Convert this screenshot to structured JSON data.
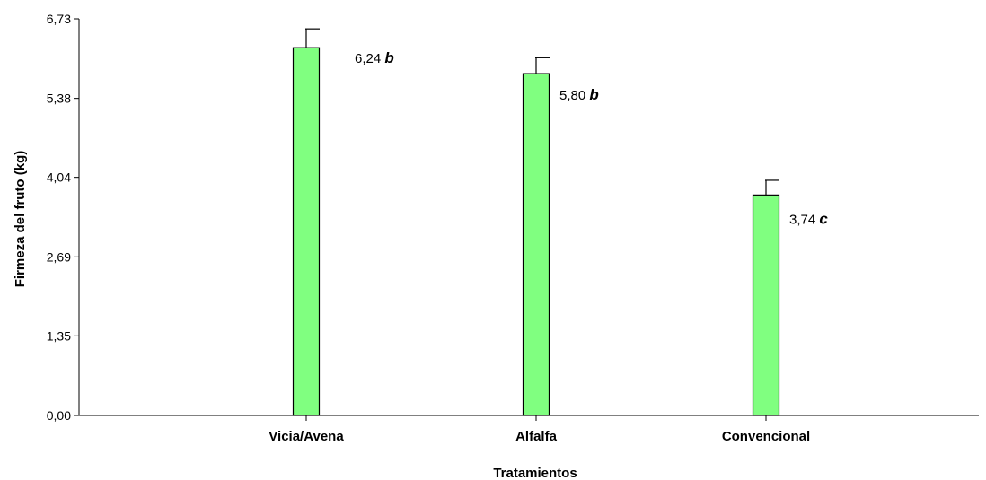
{
  "chart_data": {
    "type": "bar",
    "xlabel": "Tratamientos",
    "ylabel": "Firmeza del fruto (kg)",
    "ylim": [
      0,
      6.73
    ],
    "y_ticks": [
      "0,00",
      "1,35",
      "2,69",
      "4,04",
      "5,38",
      "6,73"
    ],
    "y_tick_values": [
      0,
      1.35,
      2.69,
      4.04,
      5.38,
      6.73
    ],
    "categories": [
      "Vicia/Avena",
      "Alfalfa",
      "Convencional"
    ],
    "values": [
      6.24,
      5.8,
      3.74
    ],
    "error_upper": [
      6.56,
      6.07,
      3.99
    ],
    "labels": [
      "6,24",
      "5,80",
      "3,74"
    ],
    "letters": [
      "b",
      "b",
      "c"
    ],
    "bar_color": "#80ff80",
    "grid": false,
    "legend": "none"
  }
}
